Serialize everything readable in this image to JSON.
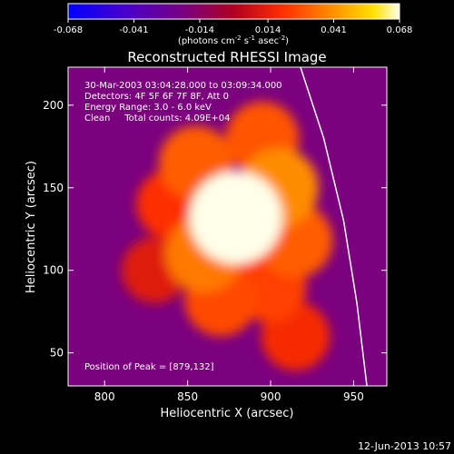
{
  "chart_data": {
    "type": "heatmap",
    "title": "Reconstructed RHESSI Image",
    "xlabel": "Heliocentric X (arcsec)",
    "ylabel": "Heliocentric Y (arcsec)",
    "xlim": [
      778,
      970
    ],
    "ylim": [
      30,
      223
    ],
    "x_ticks": [
      800,
      850,
      900,
      950
    ],
    "y_ticks": [
      50,
      100,
      150,
      200
    ],
    "colorbar": {
      "min": -0.068,
      "max": 0.068,
      "ticks": [
        "-0.068",
        "-0.041",
        "-0.014",
        "0.014",
        "0.041",
        "0.068"
      ],
      "units_label": "(photons cm",
      "units_exp1": "-2",
      "units_mid": " s",
      "units_exp2": "-1",
      "units_mid2": " asec",
      "units_exp3": "-2",
      "units_end": ")"
    },
    "annotations": [
      "30-Mar-2003 03:04:28.000 to 03:09:34.000",
      "Detectors: 4F 5F 6F 7F 8F, Att 0",
      "Energy Range: 3.0 - 6.0 keV",
      "Clean     Total counts: 4.09E+04"
    ],
    "peak_label": "Position of Peak = [879,132]",
    "peak": [
      879,
      132
    ],
    "limb_curve": [
      [
        958,
        30
      ],
      [
        952,
        80
      ],
      [
        944,
        130
      ],
      [
        932,
        180
      ],
      [
        918,
        223
      ]
    ],
    "sources": [
      {
        "x": 879,
        "y": 132,
        "value": 0.068
      },
      {
        "x": 905,
        "y": 150,
        "value": 0.04
      },
      {
        "x": 860,
        "y": 110,
        "value": 0.036
      },
      {
        "x": 915,
        "y": 118,
        "value": 0.03
      },
      {
        "x": 895,
        "y": 180,
        "value": 0.028
      },
      {
        "x": 855,
        "y": 165,
        "value": 0.03
      },
      {
        "x": 870,
        "y": 82,
        "value": 0.026
      },
      {
        "x": 900,
        "y": 90,
        "value": 0.024
      },
      {
        "x": 840,
        "y": 140,
        "value": 0.02
      },
      {
        "x": 915,
        "y": 60,
        "value": 0.018
      },
      {
        "x": 830,
        "y": 100,
        "value": 0.012
      }
    ],
    "background_value": -0.02
  },
  "footer": {
    "timestamp": "12-Jun-2013 10:57"
  }
}
